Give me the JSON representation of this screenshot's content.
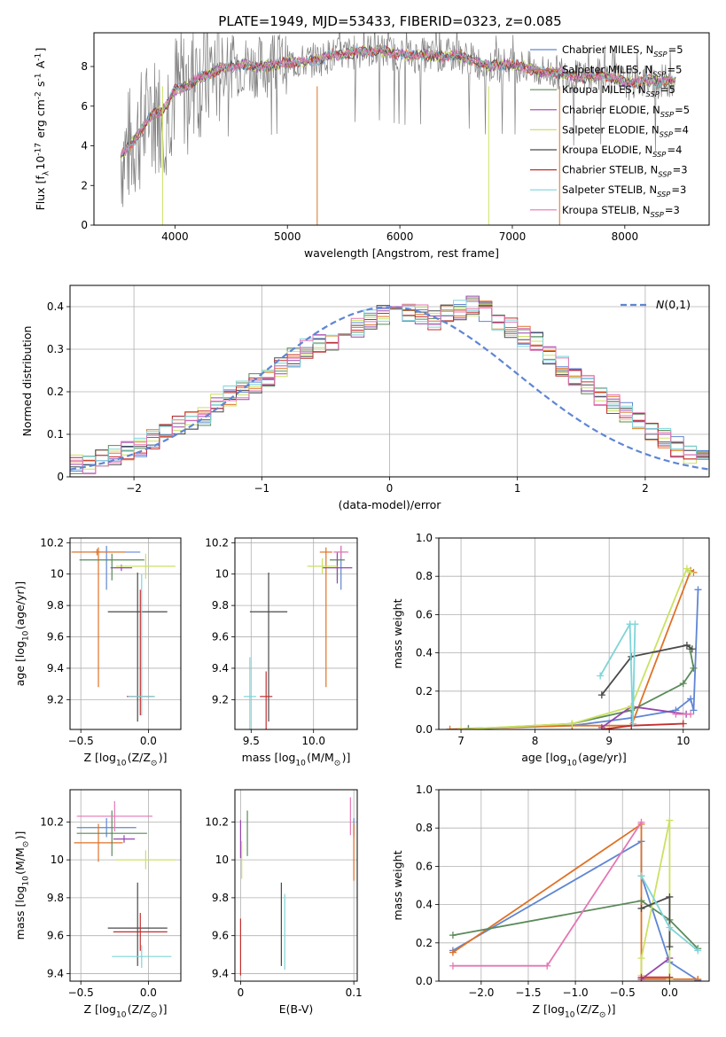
{
  "title": "PLATE=1949, MJD=53433, FIBERID=0323, z=0.085",
  "colors": {
    "c1": "#5f86d3",
    "c2": "#df7226",
    "c3": "#5a8a5a",
    "c4": "#9747ae",
    "c5": "#cbe163",
    "c6": "#4a4a4a",
    "c7": "#c22f2f",
    "c8": "#7fd4d8",
    "c9": "#e477b5",
    "data": "#808080",
    "normal": "#5f86d3"
  },
  "chart_data": [
    {
      "type": "line",
      "xlabel": "wavelength [Angstrom, rest frame]",
      "ylabel": "Flux [f$_{\\lambda}$10$^{-17}$ erg cm$^{-2}$ s$^{-1}$ A$^{-1}$]",
      "xlim": [
        3280,
        8750
      ],
      "ylim": [
        0,
        9.7
      ],
      "xticks": [
        4000,
        5000,
        6000,
        7000,
        8000
      ],
      "yticks": [
        0,
        2,
        4,
        6,
        8
      ],
      "grid": false,
      "legend_position": "top-right",
      "legend": [
        "Chabrier MILES, N$_{SSP}$=5",
        "Salpeter MILES, N$_{SSP}$=5",
        "Kroupa MILES, N$_{SSP}$=5",
        "Chabrier ELODIE, N$_{SSP}$=5",
        "Salpeter ELODIE, N$_{SSP}$=4",
        "Kroupa ELODIE, N$_{SSP}$=4",
        "Chabrier STELIB, N$_{SSP}$=3",
        "Salpeter STELIB, N$_{SSP}$=3",
        "Kroupa STELIB, N$_{SSP}$=3"
      ],
      "model_x": [
        3520,
        3600,
        3700,
        3800,
        3900,
        4000,
        4100,
        4200,
        4300,
        4400,
        4500,
        4600,
        4700,
        4800,
        4900,
        5000,
        5100,
        5200,
        5300,
        5400,
        5500,
        5600,
        5700,
        5800,
        5900,
        6000,
        6100,
        6200,
        6300,
        6400,
        6500,
        6600,
        6700,
        6800,
        6900,
        7000,
        7100,
        7200,
        7300,
        7400,
        7500,
        7600,
        7700,
        7800,
        7900,
        8000,
        8100,
        8200,
        8300,
        8400
      ],
      "model_y": [
        3.5,
        4.0,
        4.8,
        5.6,
        5.8,
        6.8,
        7.0,
        7.4,
        7.6,
        7.9,
        8.0,
        8.1,
        8.0,
        8.0,
        8.1,
        8.2,
        8.2,
        8.3,
        8.4,
        8.6,
        8.6,
        8.7,
        8.8,
        8.8,
        8.7,
        8.6,
        8.5,
        8.6,
        8.5,
        8.5,
        8.6,
        8.4,
        8.2,
        8.0,
        8.1,
        8.1,
        8.0,
        7.8,
        7.7,
        7.7,
        7.6,
        7.4,
        7.5,
        7.6,
        7.4,
        7.2,
        7.2,
        7.3,
        7.2,
        7.3
      ]
    },
    {
      "type": "bar",
      "xlabel": "(data-model)/error",
      "ylabel": "Normed distribution",
      "xlim": [
        -2.5,
        2.5
      ],
      "ylim": [
        0,
        0.45
      ],
      "xticks": [
        -2,
        -1,
        0,
        1,
        2
      ],
      "yticks": [
        0.0,
        0.1,
        0.2,
        0.3,
        0.4
      ],
      "grid": true,
      "legend_position": "top-right",
      "legend": [
        "$\\mathcal{N}(0,1)$"
      ],
      "bin_width": 0.1,
      "bin_start": -2.5,
      "hist_values": [
        0.03,
        0.03,
        0.04,
        0.05,
        0.06,
        0.07,
        0.09,
        0.1,
        0.12,
        0.13,
        0.14,
        0.17,
        0.19,
        0.2,
        0.22,
        0.23,
        0.26,
        0.28,
        0.3,
        0.31,
        0.32,
        0.33,
        0.35,
        0.37,
        0.38,
        0.38,
        0.39,
        0.38,
        0.37,
        0.38,
        0.39,
        0.4,
        0.39,
        0.37,
        0.35,
        0.33,
        0.32,
        0.29,
        0.26,
        0.24,
        0.22,
        0.19,
        0.17,
        0.15,
        0.13,
        0.11,
        0.09,
        0.07,
        0.05,
        0.04
      ]
    },
    {
      "type": "scatter",
      "xlabel": "Z [log$_{10}$(Z/Z$_{\\odot}$)]",
      "ylabel": "age  [log$_{10}$(age/yr)]",
      "xlim": [
        -0.58,
        0.24
      ],
      "ylim": [
        9.01,
        10.23
      ],
      "xticks": [
        -0.5,
        0.0
      ],
      "yticks": [
        9.2,
        9.4,
        9.6,
        9.8,
        10.0,
        10.2
      ],
      "grid": true,
      "points": [
        {
          "c": "c1",
          "x": -0.31,
          "y": 10.14,
          "xe": [
            0.25,
            0.25
          ],
          "ye": [
            0.24,
            0.04
          ]
        },
        {
          "c": "c2",
          "x": -0.37,
          "y": 10.14,
          "xe": [
            0.2,
            0.2
          ],
          "ye": [
            0.86,
            0.03
          ]
        },
        {
          "c": "c3",
          "x": -0.27,
          "y": 10.09,
          "xe": [
            0.24,
            0.24
          ],
          "ye": [
            0.13,
            0.04
          ]
        },
        {
          "c": "c4",
          "x": -0.2,
          "y": 10.04,
          "xe": [
            0.08,
            0.08
          ],
          "ye": [
            0.02,
            0.02
          ]
        },
        {
          "c": "c5",
          "x": -0.02,
          "y": 10.05,
          "xe": [
            0.22,
            0.22
          ],
          "ye": [
            0.08,
            0.08
          ]
        },
        {
          "c": "c6",
          "x": -0.08,
          "y": 9.76,
          "xe": [
            0.22,
            0.22
          ],
          "ye": [
            0.7,
            0.25
          ]
        },
        {
          "c": "c7",
          "x": -0.06,
          "y": 9.22,
          "xe": [
            0.1,
            0.1
          ],
          "ye": [
            0.12,
            0.68
          ]
        },
        {
          "c": "c8",
          "x": -0.05,
          "y": 9.22,
          "xe": [
            0.1,
            0.1
          ],
          "ye": [
            0.12,
            0.78
          ]
        },
        {
          "c": "c2",
          "x": -0.38,
          "y": 10.14,
          "xe": [
            0.03,
            0.03
          ],
          "ye": [
            0.02,
            0.02
          ]
        }
      ]
    },
    {
      "type": "scatter",
      "xlabel": "mass [log$_{10}$(M/M$_{\\odot}$)]",
      "ylabel": "",
      "xlim": [
        9.37,
        10.35
      ],
      "ylim": [
        9.01,
        10.23
      ],
      "xticks": [
        9.5,
        10.0
      ],
      "yticks": [
        9.2,
        9.4,
        9.6,
        9.8,
        10.0,
        10.2
      ],
      "grid": true,
      "points": [
        {
          "c": "c1",
          "x": 10.22,
          "y": 10.14,
          "xe": [
            0.05,
            0.05
          ],
          "ye": [
            0.24,
            0.04
          ]
        },
        {
          "c": "c2",
          "x": 10.1,
          "y": 10.14,
          "xe": [
            0.05,
            0.05
          ],
          "ye": [
            0.86,
            0.03
          ]
        },
        {
          "c": "c3",
          "x": 10.19,
          "y": 10.09,
          "xe": [
            0.06,
            0.06
          ],
          "ye": [
            0.13,
            0.04
          ]
        },
        {
          "c": "c4",
          "x": 10.19,
          "y": 10.04,
          "xe": [
            0.12,
            0.12
          ],
          "ye": [
            0.1,
            0.1
          ]
        },
        {
          "c": "c5",
          "x": 10.07,
          "y": 10.05,
          "xe": [
            0.12,
            0.12
          ],
          "ye": [
            0.05,
            0.05
          ]
        },
        {
          "c": "c6",
          "x": 9.64,
          "y": 9.76,
          "xe": [
            0.15,
            0.15
          ],
          "ye": [
            0.7,
            0.25
          ]
        },
        {
          "c": "c7",
          "x": 9.62,
          "y": 9.22,
          "xe": [
            0.05,
            0.05
          ],
          "ye": [
            0.76,
            0.16
          ]
        },
        {
          "c": "c8",
          "x": 9.49,
          "y": 9.22,
          "xe": [
            0.05,
            0.05
          ],
          "ye": [
            0.74,
            0.25
          ]
        },
        {
          "c": "c9",
          "x": 10.22,
          "y": 10.14,
          "xe": [
            0.06,
            0.06
          ],
          "ye": [
            0.04,
            0.04
          ]
        }
      ]
    },
    {
      "type": "line",
      "xlabel": "age  [log$_{10}$(age/yr)]",
      "ylabel": "mass weight",
      "xlim": [
        6.7,
        10.35
      ],
      "ylim": [
        0,
        1.0
      ],
      "xticks": [
        7,
        8,
        9,
        10
      ],
      "yticks": [
        0.0,
        0.2,
        0.4,
        0.6,
        0.8,
        1.0
      ],
      "grid": true,
      "series": [
        {
          "c": "c1",
          "x": [
            7.1,
            8.5,
            9.3,
            9.9,
            10.1,
            10.14,
            10.2
          ],
          "y": [
            0.005,
            0.02,
            0.06,
            0.1,
            0.16,
            0.1,
            0.73
          ]
        },
        {
          "c": "c2",
          "x": [
            6.85,
            8.5,
            9.3,
            10.1,
            10.14
          ],
          "y": [
            0.001,
            0.02,
            0.02,
            0.83,
            0.82
          ]
        },
        {
          "c": "c3",
          "x": [
            7.1,
            8.5,
            9.3,
            10.0,
            10.14,
            10.09
          ],
          "y": [
            0.002,
            0.03,
            0.1,
            0.24,
            0.32,
            0.42
          ]
        },
        {
          "c": "c4",
          "x": [
            8.9,
            9.3,
            10.04
          ],
          "y": [
            0.01,
            0.12,
            0.08
          ]
        },
        {
          "c": "c5",
          "x": [
            7.0,
            8.5,
            9.3,
            10.05,
            10.1
          ],
          "y": [
            0.001,
            0.03,
            0.12,
            0.84,
            0.82
          ]
        },
        {
          "c": "c6",
          "x": [
            8.9,
            9.3,
            10.05,
            10.12
          ],
          "y": [
            0.18,
            0.38,
            0.44,
            0.42
          ]
        },
        {
          "c": "c7",
          "x": [
            8.9,
            9.3,
            10.0
          ],
          "y": [
            0.0,
            0.02,
            0.03
          ]
        },
        {
          "c": "c8",
          "x": [
            8.88,
            9.28,
            9.32,
            9.35
          ],
          "y": [
            0.28,
            0.55,
            0.03,
            0.55
          ]
        },
        {
          "c": "c9",
          "x": [
            9.9,
            10.1
          ],
          "y": [
            0.08,
            0.08
          ]
        }
      ]
    },
    {
      "type": "scatter",
      "xlabel": "Z [log$_{10}$(Z/Z$_{\\odot}$)]",
      "ylabel": "mass [log$_{10}$(M/M$_{\\odot}$)]",
      "xlim": [
        -0.58,
        0.24
      ],
      "ylim": [
        9.36,
        10.37
      ],
      "xticks": [
        -0.5,
        0.0
      ],
      "yticks": [
        9.4,
        9.6,
        9.8,
        10.0,
        10.2
      ],
      "grid": true,
      "points": [
        {
          "c": "c1",
          "x": -0.31,
          "y": 10.17,
          "xe": [
            0.22,
            0.22
          ],
          "ye": [
            0.05,
            0.05
          ]
        },
        {
          "c": "c2",
          "x": -0.37,
          "y": 10.09,
          "xe": [
            0.18,
            0.18
          ],
          "ye": [
            0.1,
            0.1
          ]
        },
        {
          "c": "c3",
          "x": -0.27,
          "y": 10.14,
          "xe": [
            0.26,
            0.26
          ],
          "ye": [
            0.12,
            0.12
          ]
        },
        {
          "c": "c4",
          "x": -0.18,
          "y": 10.11,
          "xe": [
            0.08,
            0.08
          ],
          "ye": [
            0.02,
            0.02
          ]
        },
        {
          "c": "c5",
          "x": -0.02,
          "y": 10.0,
          "xe": [
            0.22,
            0.22
          ],
          "ye": [
            0.05,
            0.05
          ]
        },
        {
          "c": "c6",
          "x": -0.08,
          "y": 9.64,
          "xe": [
            0.22,
            0.22
          ],
          "ye": [
            0.2,
            0.24
          ]
        },
        {
          "c": "c7",
          "x": -0.06,
          "y": 9.62,
          "xe": [
            0.2,
            0.2
          ],
          "ye": [
            0.1,
            0.1
          ]
        },
        {
          "c": "c8",
          "x": -0.05,
          "y": 9.49,
          "xe": [
            0.22,
            0.22
          ],
          "ye": [
            0.06,
            0.06
          ]
        },
        {
          "c": "c9",
          "x": -0.25,
          "y": 10.23,
          "xe": [
            0.28,
            0.28
          ],
          "ye": [
            0.08,
            0.08
          ]
        }
      ]
    },
    {
      "type": "scatter",
      "xlabel": "E(B-V)",
      "ylabel": "",
      "xlim": [
        -0.005,
        0.103
      ],
      "ylim": [
        9.36,
        10.37
      ],
      "xticks": [
        0.0,
        0.1
      ],
      "yticks": [
        9.4,
        9.6,
        9.8,
        10.0,
        10.2
      ],
      "grid": true,
      "points": [
        {
          "c": "c1",
          "x": 0.1,
          "y": 10.17,
          "xe": [
            0.0,
            0.0
          ],
          "ye": [
            0.05,
            0.05
          ]
        },
        {
          "c": "c2",
          "x": 0.1,
          "y": 10.09,
          "xe": [
            0.0,
            0.0
          ],
          "ye": [
            0.2,
            0.1
          ]
        },
        {
          "c": "c3",
          "x": 0.006,
          "y": 10.14,
          "xe": [
            0.0,
            0.0
          ],
          "ye": [
            0.12,
            0.12
          ]
        },
        {
          "c": "c4",
          "x": 0.0,
          "y": 10.11,
          "xe": [
            0.0,
            0.0
          ],
          "ye": [
            0.1,
            0.1
          ]
        },
        {
          "c": "c5",
          "x": 0.001,
          "y": 10.0,
          "xe": [
            0.0,
            0.0
          ],
          "ye": [
            0.1,
            0.1
          ]
        },
        {
          "c": "c6",
          "x": 0.036,
          "y": 9.64,
          "xe": [
            0.0,
            0.0
          ],
          "ye": [
            0.2,
            0.24
          ]
        },
        {
          "c": "c7",
          "x": 0.0,
          "y": 9.62,
          "xe": [
            0.0,
            0.0
          ],
          "ye": [
            0.23,
            0.07
          ]
        },
        {
          "c": "c8",
          "x": 0.039,
          "y": 9.62,
          "xe": [
            0.0,
            0.0
          ],
          "ye": [
            0.2,
            0.2
          ]
        },
        {
          "c": "c9",
          "x": 0.097,
          "y": 10.23,
          "xe": [
            0.0,
            0.0
          ],
          "ye": [
            0.1,
            0.1
          ]
        }
      ]
    },
    {
      "type": "line",
      "xlabel": "Z [log$_{10}$(Z/Z$_{\\odot}$)]",
      "ylabel": "mass weight",
      "xlim": [
        -2.45,
        0.42
      ],
      "ylim": [
        0,
        1.0
      ],
      "xticks": [
        -2.0,
        -1.5,
        -1.0,
        -0.5,
        0.0
      ],
      "yticks": [
        0.0,
        0.2,
        0.4,
        0.6,
        0.8,
        1.0
      ],
      "grid": true,
      "series": [
        {
          "c": "c1",
          "x": [
            -2.3,
            -0.3,
            -0.3,
            0.0,
            0.3
          ],
          "y": [
            0.16,
            0.73,
            0.55,
            0.1,
            0.005
          ]
        },
        {
          "c": "c2",
          "x": [
            -2.3,
            -0.3,
            -0.3,
            0.3
          ],
          "y": [
            0.15,
            0.82,
            0.01,
            0.01
          ]
        },
        {
          "c": "c3",
          "x": [
            -2.3,
            -0.3,
            0.0,
            0.3
          ],
          "y": [
            0.24,
            0.42,
            0.32,
            0.17
          ]
        },
        {
          "c": "c4",
          "x": [
            -0.3,
            0.0
          ],
          "y": [
            0.01,
            0.12
          ]
        },
        {
          "c": "c5",
          "x": [
            -0.3,
            -0.3,
            0.0,
            0.0
          ],
          "y": [
            0.03,
            0.12,
            0.84,
            0.01
          ]
        },
        {
          "c": "c6",
          "x": [
            -0.3,
            0.0,
            0.0
          ],
          "y": [
            0.38,
            0.44,
            0.18
          ]
        },
        {
          "c": "c7",
          "x": [
            -0.3,
            0.0
          ],
          "y": [
            0.02,
            0.02
          ]
        },
        {
          "c": "c8",
          "x": [
            -0.3,
            0.0,
            0.3
          ],
          "y": [
            0.55,
            0.28,
            0.16
          ]
        },
        {
          "c": "c9",
          "x": [
            -2.3,
            -1.3,
            -0.3
          ],
          "y": [
            0.08,
            0.08,
            0.83
          ]
        }
      ]
    }
  ]
}
